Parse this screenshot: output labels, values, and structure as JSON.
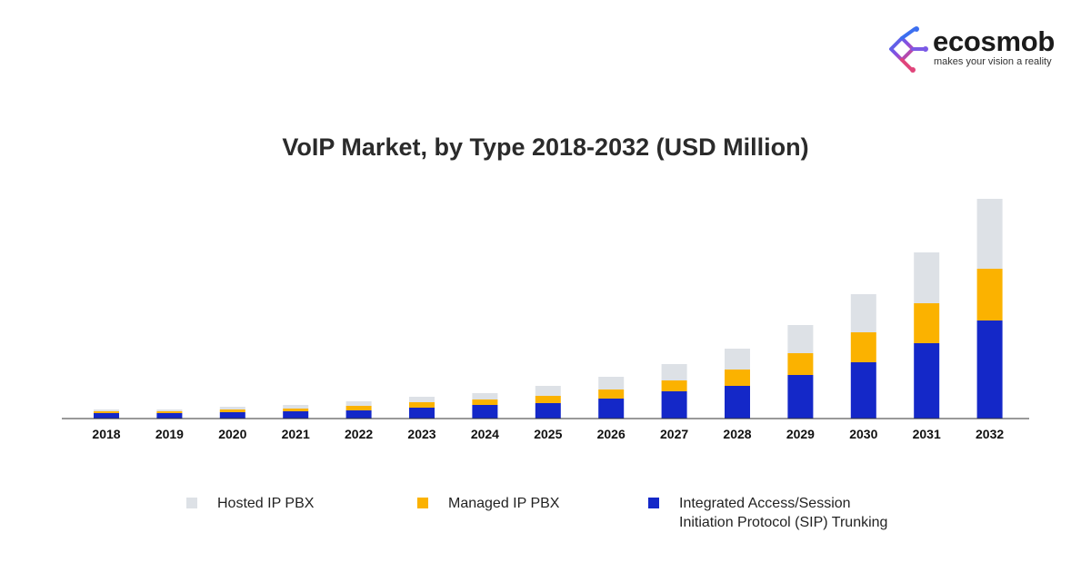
{
  "brand": {
    "name": "ecosmob",
    "tagline": "makes your vision a reality"
  },
  "colors": {
    "hosted": "#dde1e6",
    "managed": "#fbb200",
    "sip": "#1428c8",
    "axis": "#333333"
  },
  "chart_data": {
    "type": "bar",
    "stacked": true,
    "title": "VoIP Market, by Type 2018-2032 (USD Million)",
    "xlabel": "",
    "ylabel": "",
    "y_axis_visible": false,
    "grid": false,
    "legend_position": "bottom",
    "categories": [
      "2018",
      "2019",
      "2020",
      "2021",
      "2022",
      "2023",
      "2024",
      "2025",
      "2026",
      "2027",
      "2028",
      "2029",
      "2030",
      "2031",
      "2032"
    ],
    "series": [
      {
        "name": "Integrated Access/Session Initiation Protocol (SIP) Trunking",
        "name_lines": [
          "Integrated Access/Session",
          "Initiation Protocol (SIP) Trunking"
        ],
        "color_key": "sip",
        "values": [
          6,
          6,
          7,
          8,
          9,
          12,
          15,
          17,
          22,
          30,
          36,
          48,
          62,
          83,
          108
        ]
      },
      {
        "name": "Managed IP PBX",
        "name_lines": [
          "Managed IP PBX"
        ],
        "color_key": "managed",
        "values": [
          2,
          2,
          3,
          3,
          5,
          6,
          6,
          8,
          10,
          12,
          18,
          24,
          33,
          44,
          57
        ]
      },
      {
        "name": "Hosted IP PBX",
        "name_lines": [
          "Hosted IP PBX"
        ],
        "color_key": "hosted",
        "values": [
          2,
          2,
          3,
          4,
          5,
          6,
          7,
          11,
          14,
          18,
          23,
          31,
          42,
          56,
          77
        ]
      }
    ],
    "legend_order": [
      "Hosted IP PBX",
      "Managed IP PBX",
      "Integrated Access/Session Initiation Protocol (SIP) Trunking"
    ]
  }
}
